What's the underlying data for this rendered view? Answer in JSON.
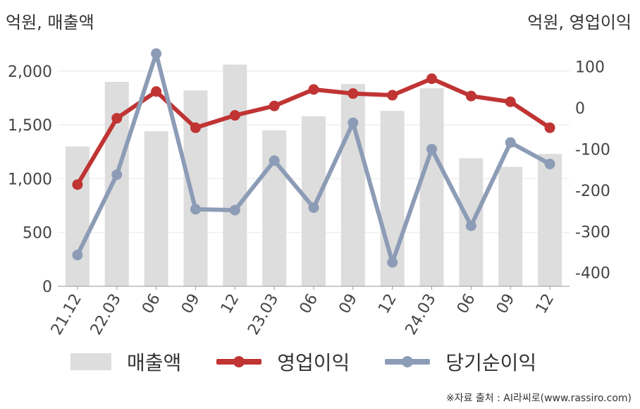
{
  "units": {
    "left": "억원, 매출액",
    "right": "억원, 영업이익"
  },
  "source": "※자료 출처 : AI라씨로(www.rassiro.com)",
  "colors": {
    "revenue": "#dddddd",
    "operating": "#c03434",
    "net": "#8d9cb6",
    "grid": "#e8e8e8",
    "axis": "#999999"
  },
  "legend": [
    {
      "label": "매출액",
      "kind": "bar",
      "color": "#dddddd"
    },
    {
      "label": "영업이익",
      "kind": "line",
      "color": "#c03434"
    },
    {
      "label": "당기순이익",
      "kind": "line",
      "color": "#8d9cb6"
    }
  ],
  "chart_data": {
    "type": "bar",
    "categories": [
      "21.12",
      "22.03",
      "06",
      "09",
      "12",
      "23.03",
      "06",
      "09",
      "12",
      "24.03",
      "06",
      "09",
      "12"
    ],
    "series": [
      {
        "name": "매출액",
        "type": "bar",
        "axis": "left",
        "values": [
          1300,
          1900,
          1440,
          1820,
          2060,
          1450,
          1580,
          1880,
          1630,
          1840,
          1190,
          1110,
          1230
        ]
      },
      {
        "name": "영업이익",
        "type": "line",
        "axis": "right",
        "values": [
          -186,
          -25,
          40,
          -48,
          -18,
          5,
          45,
          35,
          31,
          71,
          29,
          15,
          -48
        ]
      },
      {
        "name": "당기순이익",
        "type": "line",
        "axis": "right",
        "values": [
          -357,
          -162,
          132,
          -246,
          -248,
          -128,
          -242,
          -36,
          -375,
          -100,
          -286,
          -84,
          -136
        ]
      }
    ],
    "yleft": {
      "lim": [
        0,
        2300
      ],
      "ticks": [
        0,
        500,
        1000,
        1500,
        2000
      ]
    },
    "yright": {
      "lim": [
        -433,
        168
      ],
      "ticks": [
        -400,
        -300,
        -200,
        -100,
        0,
        100
      ]
    },
    "grid": true,
    "legend_position": "bottom"
  }
}
